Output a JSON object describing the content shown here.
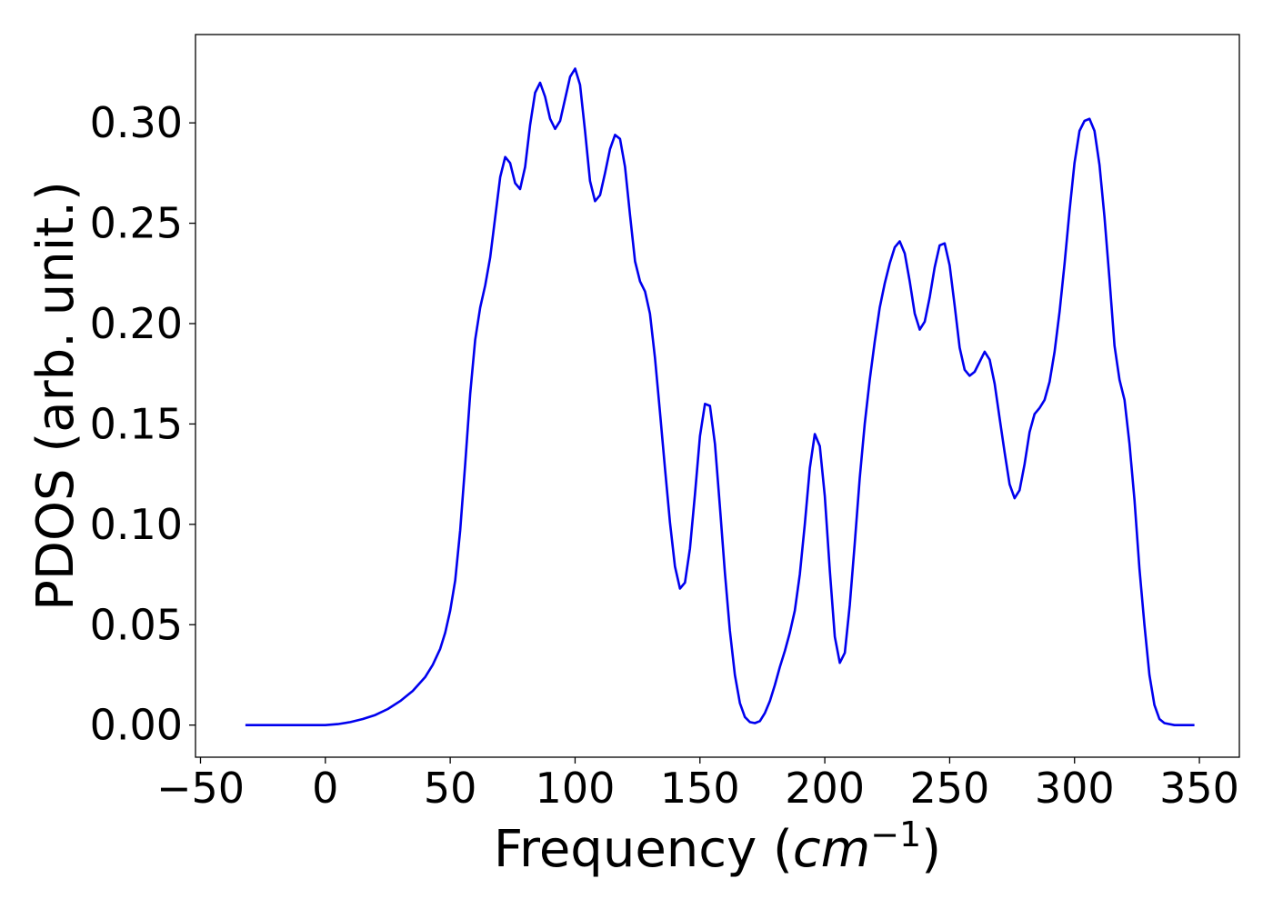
{
  "chart_data": {
    "type": "line",
    "xlabel": "Frequency",
    "xlabel_unit_base": "cm",
    "xlabel_unit_exponent": "−1",
    "ylabel": "PDOS (arb. unit.)",
    "xlim": [
      -52,
      366
    ],
    "ylim": [
      -0.016,
      0.344
    ],
    "x_ticks": [
      -50,
      0,
      50,
      100,
      150,
      200,
      250,
      300,
      350
    ],
    "x_tick_labels": [
      "−50",
      "0",
      "50",
      "100",
      "150",
      "200",
      "250",
      "300",
      "350"
    ],
    "y_ticks": [
      0.0,
      0.05,
      0.1,
      0.15,
      0.2,
      0.25,
      0.3
    ],
    "y_tick_labels": [
      "0.00",
      "0.05",
      "0.10",
      "0.15",
      "0.20",
      "0.25",
      "0.30"
    ],
    "grid": false,
    "series": [
      {
        "color": "#0000ee",
        "points": [
          [
            -32,
            0.0
          ],
          [
            -10,
            0.0
          ],
          [
            0,
            0.0
          ],
          [
            5,
            0.0005
          ],
          [
            10,
            0.0015
          ],
          [
            15,
            0.003
          ],
          [
            20,
            0.005
          ],
          [
            25,
            0.008
          ],
          [
            30,
            0.012
          ],
          [
            35,
            0.017
          ],
          [
            40,
            0.024
          ],
          [
            43,
            0.03
          ],
          [
            46,
            0.038
          ],
          [
            48,
            0.046
          ],
          [
            50,
            0.057
          ],
          [
            52,
            0.072
          ],
          [
            54,
            0.097
          ],
          [
            56,
            0.13
          ],
          [
            58,
            0.165
          ],
          [
            60,
            0.192
          ],
          [
            62,
            0.208
          ],
          [
            64,
            0.219
          ],
          [
            66,
            0.233
          ],
          [
            68,
            0.253
          ],
          [
            70,
            0.273
          ],
          [
            72,
            0.283
          ],
          [
            74,
            0.28
          ],
          [
            76,
            0.27
          ],
          [
            78,
            0.267
          ],
          [
            80,
            0.278
          ],
          [
            82,
            0.299
          ],
          [
            84,
            0.315
          ],
          [
            86,
            0.32
          ],
          [
            88,
            0.313
          ],
          [
            90,
            0.302
          ],
          [
            92,
            0.297
          ],
          [
            94,
            0.301
          ],
          [
            96,
            0.312
          ],
          [
            98,
            0.323
          ],
          [
            100,
            0.327
          ],
          [
            102,
            0.319
          ],
          [
            104,
            0.296
          ],
          [
            106,
            0.271
          ],
          [
            108,
            0.261
          ],
          [
            110,
            0.264
          ],
          [
            112,
            0.275
          ],
          [
            114,
            0.287
          ],
          [
            116,
            0.294
          ],
          [
            118,
            0.292
          ],
          [
            120,
            0.278
          ],
          [
            122,
            0.254
          ],
          [
            124,
            0.231
          ],
          [
            126,
            0.221
          ],
          [
            128,
            0.216
          ],
          [
            130,
            0.205
          ],
          [
            132,
            0.183
          ],
          [
            134,
            0.156
          ],
          [
            136,
            0.128
          ],
          [
            138,
            0.101
          ],
          [
            140,
            0.079
          ],
          [
            142,
            0.068
          ],
          [
            144,
            0.071
          ],
          [
            146,
            0.088
          ],
          [
            148,
            0.115
          ],
          [
            150,
            0.144
          ],
          [
            152,
            0.16
          ],
          [
            154,
            0.159
          ],
          [
            156,
            0.14
          ],
          [
            158,
            0.109
          ],
          [
            160,
            0.076
          ],
          [
            162,
            0.047
          ],
          [
            164,
            0.025
          ],
          [
            166,
            0.011
          ],
          [
            168,
            0.004
          ],
          [
            170,
            0.0015
          ],
          [
            172,
            0.001
          ],
          [
            174,
            0.002
          ],
          [
            176,
            0.006
          ],
          [
            178,
            0.012
          ],
          [
            180,
            0.02
          ],
          [
            182,
            0.029
          ],
          [
            184,
            0.037
          ],
          [
            186,
            0.046
          ],
          [
            188,
            0.057
          ],
          [
            190,
            0.075
          ],
          [
            192,
            0.1
          ],
          [
            194,
            0.128
          ],
          [
            196,
            0.145
          ],
          [
            198,
            0.139
          ],
          [
            200,
            0.114
          ],
          [
            202,
            0.077
          ],
          [
            204,
            0.044
          ],
          [
            206,
            0.031
          ],
          [
            208,
            0.036
          ],
          [
            210,
            0.06
          ],
          [
            212,
            0.091
          ],
          [
            214,
            0.123
          ],
          [
            216,
            0.15
          ],
          [
            218,
            0.172
          ],
          [
            220,
            0.191
          ],
          [
            222,
            0.208
          ],
          [
            224,
            0.22
          ],
          [
            226,
            0.23
          ],
          [
            228,
            0.238
          ],
          [
            230,
            0.241
          ],
          [
            232,
            0.235
          ],
          [
            234,
            0.221
          ],
          [
            236,
            0.205
          ],
          [
            238,
            0.197
          ],
          [
            240,
            0.201
          ],
          [
            242,
            0.213
          ],
          [
            244,
            0.228
          ],
          [
            246,
            0.239
          ],
          [
            248,
            0.24
          ],
          [
            250,
            0.229
          ],
          [
            252,
            0.209
          ],
          [
            254,
            0.188
          ],
          [
            256,
            0.177
          ],
          [
            258,
            0.174
          ],
          [
            260,
            0.176
          ],
          [
            262,
            0.181
          ],
          [
            264,
            0.186
          ],
          [
            266,
            0.182
          ],
          [
            268,
            0.17
          ],
          [
            270,
            0.153
          ],
          [
            272,
            0.136
          ],
          [
            274,
            0.12
          ],
          [
            276,
            0.113
          ],
          [
            278,
            0.117
          ],
          [
            280,
            0.13
          ],
          [
            282,
            0.146
          ],
          [
            284,
            0.155
          ],
          [
            286,
            0.158
          ],
          [
            288,
            0.162
          ],
          [
            290,
            0.171
          ],
          [
            292,
            0.186
          ],
          [
            294,
            0.206
          ],
          [
            296,
            0.23
          ],
          [
            298,
            0.256
          ],
          [
            300,
            0.28
          ],
          [
            302,
            0.296
          ],
          [
            304,
            0.301
          ],
          [
            306,
            0.302
          ],
          [
            308,
            0.296
          ],
          [
            310,
            0.279
          ],
          [
            312,
            0.253
          ],
          [
            314,
            0.222
          ],
          [
            316,
            0.189
          ],
          [
            318,
            0.172
          ],
          [
            320,
            0.162
          ],
          [
            322,
            0.14
          ],
          [
            324,
            0.112
          ],
          [
            326,
            0.078
          ],
          [
            328,
            0.05
          ],
          [
            330,
            0.025
          ],
          [
            332,
            0.01
          ],
          [
            334,
            0.003
          ],
          [
            336,
            0.001
          ],
          [
            340,
            0.0
          ],
          [
            348,
            0.0
          ]
        ]
      }
    ]
  }
}
